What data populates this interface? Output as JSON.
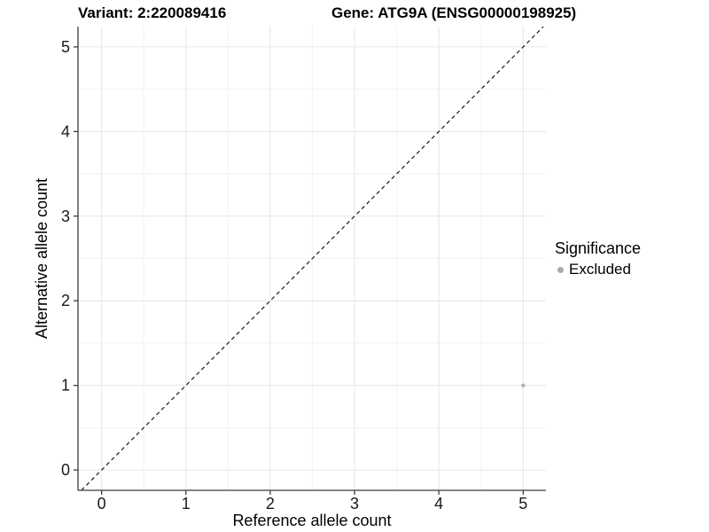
{
  "header": {
    "variant_title": "Variant: 2:220089416",
    "gene_title": "Gene: ATG9A (ENSG00000198925)"
  },
  "chart_data": {
    "type": "scatter",
    "title_left": "Variant: 2:220089416",
    "title_right": "Gene: ATG9A (ENSG00000198925)",
    "xlabel": "Reference allele count",
    "ylabel": "Alternative allele count",
    "xlim": [
      -0.28,
      5.27
    ],
    "ylim": [
      -0.24,
      5.24
    ],
    "xticks": [
      0,
      1,
      2,
      3,
      4,
      5
    ],
    "yticks": [
      0,
      1,
      2,
      3,
      4,
      5
    ],
    "minor_grid_step": 0.5,
    "grid": true,
    "identity_line": {
      "slope": 1,
      "intercept": 0,
      "style": "dashed",
      "color": "#1a1a1a"
    },
    "points": [
      {
        "x": 5,
        "y": 1,
        "significance": "Excluded",
        "color": "#b3b3b3",
        "radius": 2.2
      }
    ],
    "legend": {
      "title": "Significance",
      "position": "right",
      "items": [
        {
          "label": "Excluded",
          "color": "#a9a9a9"
        }
      ]
    },
    "colors": {
      "grid_major": "#e6e6e6",
      "grid_minor": "#f2f2f2",
      "axis": "#3c3c3c",
      "tick_text": "#1a1a1a",
      "background": "#ffffff"
    }
  }
}
